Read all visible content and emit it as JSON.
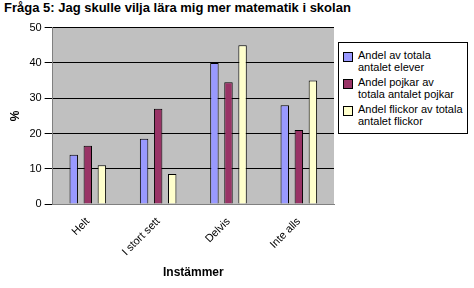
{
  "chart_data": {
    "type": "bar",
    "title": "Fråga 5: Jag skulle vilja lära mig mer matematik i skolan",
    "x_label": "Instämmer",
    "y_label": "%",
    "categories": [
      "Helt",
      "I stort sett",
      "Delvis",
      "Inte alls"
    ],
    "series": [
      {
        "name": "Andel av totala antalet elever",
        "color": "#9999ff",
        "values": [
          14,
          18.5,
          40,
          28
        ]
      },
      {
        "name": "Andel pojkar av totala antalet pojkar",
        "color": "#993366",
        "values": [
          16.5,
          27,
          34.5,
          21
        ]
      },
      {
        "name": "Andel flickor av totala antalet flickor",
        "color": "#ffffcc",
        "values": [
          11,
          8.5,
          45,
          35
        ]
      }
    ],
    "ylim": [
      0,
      50
    ],
    "yticks": [
      0,
      10,
      20,
      30,
      40,
      50
    ],
    "grid": true,
    "legend": "right"
  }
}
